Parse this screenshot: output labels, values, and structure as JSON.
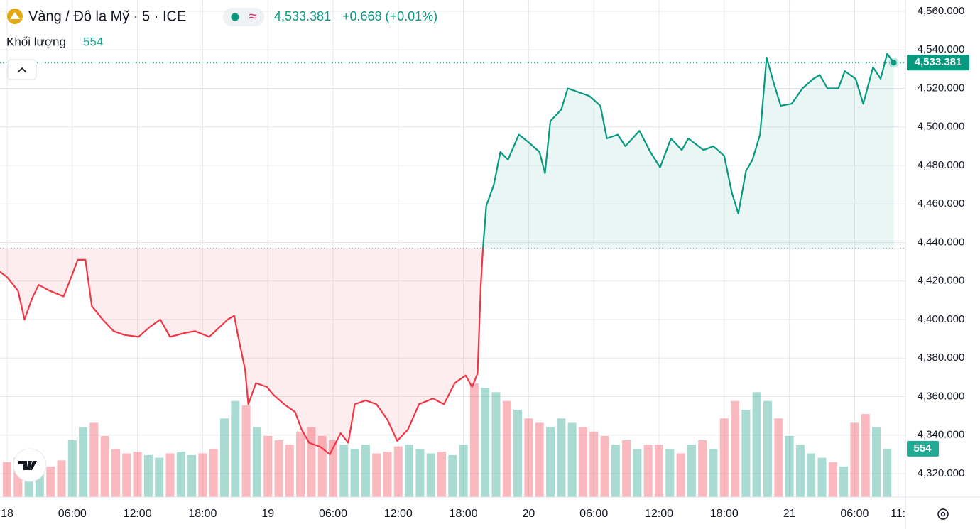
{
  "chart_data": {
    "type": "line",
    "title": "Vàng / Đô la Mỹ · 5 · ICE",
    "price_label": "4,533.381",
    "change_label": "+0.668 (+0.01%)",
    "volume_title": "Khối lượng",
    "volume_label": "554",
    "baseline": 4437,
    "up_color": "#089981",
    "down_color": "#f23645",
    "grid": true,
    "series": [
      {
        "name": "Vàng / Đô la Mỹ",
        "color": "#089981",
        "x": [
          -0.7,
          0,
          1,
          1.6,
          2.3,
          2.9,
          3.9,
          5.2,
          5.9,
          6.5,
          7.2,
          7.8,
          8.8,
          9.8,
          10.8,
          12.1,
          13.1,
          14.1,
          15,
          16.3,
          17.3,
          18.6,
          20.3,
          20.9,
          21.2,
          21.9,
          22.2,
          22.9,
          23.9,
          24.5,
          25.5,
          26.5,
          27.1,
          27.8,
          28.8,
          29.7,
          30.7,
          31.4,
          32,
          33,
          34,
          35,
          35.9,
          36.9,
          37.9,
          39.2,
          40.2,
          41.2,
          42.2,
          42.8,
          43.3,
          43.6,
          43.8,
          44.1,
          44.8,
          45.4,
          46.1,
          47.1,
          48,
          49,
          49.5,
          50,
          51,
          51.6,
          52.6,
          53.6,
          54.6,
          55.2,
          56.2,
          56.9,
          58.2,
          59.2,
          60.1,
          61.1,
          62.1,
          62.7,
          64.1,
          65,
          66,
          66.7,
          67.3,
          68,
          68.6,
          69.3,
          69.9,
          70.6,
          71.2,
          72.2,
          73.2,
          74.2,
          74.8,
          75.5,
          76.5,
          77.1,
          78.1,
          78.8,
          79.7,
          80.4,
          81,
          81.6
        ],
        "values": [
          4425,
          4422,
          4415,
          4400,
          4411,
          4418,
          4415,
          4412,
          4422,
          4431,
          4431,
          4407,
          4400,
          4394,
          4392,
          4391,
          4396,
          4400,
          4391,
          4393,
          4394,
          4391,
          4400,
          4402,
          4393,
          4374,
          4356,
          4367,
          4365,
          4361,
          4356,
          4352,
          4343,
          4336,
          4334,
          4330,
          4341,
          4336,
          4356,
          4358,
          4356,
          4348,
          4337,
          4343,
          4356,
          4359,
          4356,
          4367,
          4371,
          4365,
          4372,
          4418,
          4437,
          4459,
          4470,
          4487,
          4483,
          4496,
          4492,
          4487,
          4476,
          4503,
          4509,
          4520,
          4518,
          4516,
          4511,
          4494,
          4496,
          4490,
          4498,
          4487,
          4479,
          4494,
          4488,
          4494,
          4488,
          4490,
          4485,
          4466,
          4455,
          4477,
          4483,
          4496,
          4536,
          4522,
          4511,
          4512,
          4520,
          4525,
          4527,
          4520,
          4520,
          4529,
          4525,
          4512,
          4531,
          4525,
          4538,
          4533.381
        ]
      }
    ],
    "volume": {
      "x": [
        0,
        1,
        2,
        3,
        4,
        5,
        6,
        7,
        8,
        9,
        10,
        11,
        12,
        13,
        14,
        15,
        16,
        17,
        18,
        19,
        20,
        21,
        22,
        23,
        24,
        25,
        26,
        27,
        28,
        29,
        30,
        31,
        32,
        33,
        34,
        35,
        36,
        37,
        38,
        39,
        40,
        41,
        42,
        43,
        44,
        45,
        46,
        47,
        48,
        49,
        50,
        51,
        52,
        53,
        54,
        55,
        56,
        57,
        58,
        59,
        60,
        61,
        62,
        63,
        64,
        65,
        66,
        67,
        68,
        69,
        70,
        71,
        72,
        73,
        74,
        75,
        76,
        77,
        78,
        79,
        80,
        81
      ],
      "values": [
        400,
        450,
        380,
        300,
        350,
        420,
        650,
        800,
        850,
        700,
        550,
        500,
        520,
        480,
        450,
        500,
        520,
        480,
        500,
        550,
        900,
        1100,
        1050,
        800,
        700,
        650,
        600,
        750,
        800,
        700,
        650,
        600,
        550,
        600,
        500,
        520,
        580,
        600,
        550,
        500,
        520,
        480,
        600,
        1300,
        1250,
        1200,
        1100,
        1000,
        900,
        850,
        800,
        900,
        850,
        800,
        750,
        700,
        600,
        650,
        550,
        600,
        600,
        550,
        500,
        600,
        650,
        550,
        900,
        1100,
        1000,
        1200,
        1100,
        900,
        700,
        600,
        500,
        450,
        400,
        350,
        850,
        950,
        800,
        554
      ],
      "ylim": [
        0,
        1300
      ]
    },
    "ylim": [
      4320,
      4560
    ],
    "yticks": [
      {
        "value": 4320,
        "label": "4,320.000"
      },
      {
        "value": 4340,
        "label": "4,340.000"
      },
      {
        "value": 4360,
        "label": "4,360.000"
      },
      {
        "value": 4380,
        "label": "4,380.000"
      },
      {
        "value": 4400,
        "label": "4,400.000"
      },
      {
        "value": 4420,
        "label": "4,420.000"
      },
      {
        "value": 4440,
        "label": "4,440.000"
      },
      {
        "value": 4460,
        "label": "4,460.000"
      },
      {
        "value": 4480,
        "label": "4,480.000"
      },
      {
        "value": 4500,
        "label": "4,500.000"
      },
      {
        "value": 4520,
        "label": "4,520.000"
      },
      {
        "value": 4540,
        "label": "4,540.000"
      },
      {
        "value": 4560,
        "label": "4,560.000"
      }
    ],
    "xticks": [
      {
        "value": 0,
        "label": "18"
      },
      {
        "value": 6,
        "label": "06:00"
      },
      {
        "value": 12,
        "label": "12:00"
      },
      {
        "value": 18,
        "label": "18:00"
      },
      {
        "value": 24,
        "label": "19"
      },
      {
        "value": 30,
        "label": "06:00"
      },
      {
        "value": 36,
        "label": "12:00"
      },
      {
        "value": 42,
        "label": "18:00"
      },
      {
        "value": 48,
        "label": "20"
      },
      {
        "value": 54,
        "label": "06:00"
      },
      {
        "value": 60,
        "label": "12:00"
      },
      {
        "value": 66,
        "label": "18:00"
      },
      {
        "value": 72,
        "label": "21"
      },
      {
        "value": 78,
        "label": "06:00"
      },
      {
        "value": 82,
        "label": "11:"
      }
    ]
  }
}
